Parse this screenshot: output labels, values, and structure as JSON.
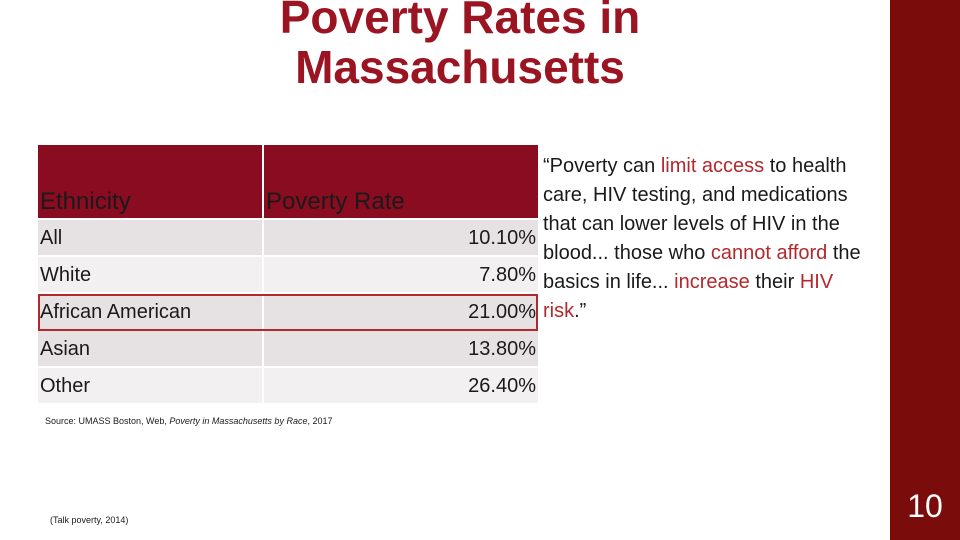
{
  "slide": {
    "title_line1": "Poverty Rates in",
    "title_line2": "Massachusetts",
    "page_number": "10"
  },
  "table": {
    "headers": [
      "Ethnicity",
      "Poverty Rate"
    ],
    "rows": [
      {
        "ethnicity": "All",
        "rate": "10.10%"
      },
      {
        "ethnicity": "White",
        "rate": "7.80%"
      },
      {
        "ethnicity": "African American",
        "rate": "21.00%"
      },
      {
        "ethnicity": "Asian",
        "rate": "13.80%"
      },
      {
        "ethnicity": "Other",
        "rate": "26.40%"
      }
    ]
  },
  "quote": {
    "p1": "“Poverty can ",
    "p2": "limit access",
    "p3": " to health care, HIV testing, and medications that can lower levels of HIV in the blood... those who ",
    "p4": "cannot afford",
    "p5": " the basics in life... ",
    "p6": "increase",
    "p7": " their ",
    "p8": "HIV risk",
    "p9": ".”"
  },
  "source": {
    "prefix": "Source: UMASS Boston, Web, ",
    "italic": "Poverty in Massachusetts by Race",
    "suffix": ", 2017"
  },
  "citation": "(Talk poverty, 2014)",
  "colors": {
    "title": "#9b1422",
    "accent_bar": "#7a0c0c",
    "header_fill": "#8a0c20",
    "highlight_text": "#b3282d"
  }
}
